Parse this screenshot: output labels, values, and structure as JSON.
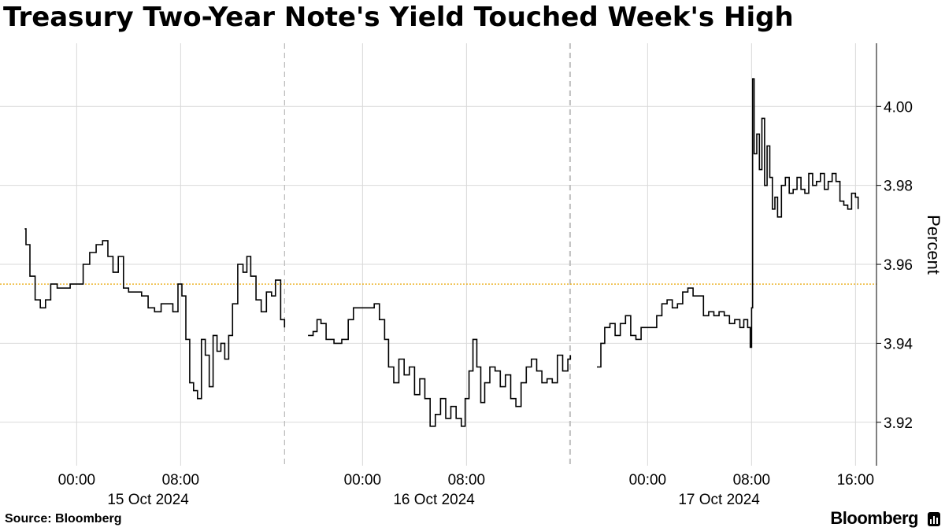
{
  "title": "Treasury Two-Year Note's Yield Touched Week's High",
  "source": "Source: Bloomberg",
  "brand": "Bloomberg",
  "colors": {
    "line": "#000000",
    "reference": "#e8a600",
    "grid": "#d9d9d9"
  },
  "chart_data": {
    "type": "line",
    "title": "Treasury Two-Year Note's Yield Touched Week's High",
    "xlabel": "",
    "ylabel": "Percent",
    "ylim": [
      3.909,
      4.016
    ],
    "xlim": [
      -5.9,
      16.4
    ],
    "y_ticks": [
      3.92,
      3.94,
      3.96,
      3.98,
      4.0
    ],
    "y_tick_labels": [
      "3.92",
      "3.94",
      "3.96",
      "3.98",
      "4.00"
    ],
    "x_ticks": [
      {
        "day": 0,
        "hour": 0,
        "label": "00:00"
      },
      {
        "day": 0,
        "hour": 8,
        "label": "08:00"
      },
      {
        "day": 1,
        "hour": 0,
        "label": "00:00"
      },
      {
        "day": 1,
        "hour": 8,
        "label": "08:00"
      },
      {
        "day": 2,
        "hour": 0,
        "label": "00:00"
      },
      {
        "day": 2,
        "hour": 8,
        "label": "08:00"
      },
      {
        "day": 2,
        "hour": 16,
        "label": "16:00"
      }
    ],
    "days": [
      {
        "label": "15 Oct 2024",
        "center_hour": 5.5
      },
      {
        "label": "16 Oct 2024",
        "center_hour": 5.5
      },
      {
        "label": "17 Oct 2024",
        "center_hour": 5.5
      }
    ],
    "day_boundaries": [
      {
        "day": 0,
        "hour": -6
      },
      {
        "day": 0,
        "hour": 16
      },
      {
        "day": 1,
        "hour": -6
      },
      {
        "day": 1,
        "hour": 16
      },
      {
        "day": 2,
        "hour": -6
      }
    ],
    "reference_line": 3.955,
    "grid": true,
    "series": [
      {
        "day": 0,
        "points": [
          [
            -4.0,
            3.969
          ],
          [
            -3.9,
            3.965
          ],
          [
            -3.6,
            3.957
          ],
          [
            -3.2,
            3.951
          ],
          [
            -2.8,
            3.949
          ],
          [
            -2.4,
            3.951
          ],
          [
            -2.0,
            3.955
          ],
          [
            -1.5,
            3.954
          ],
          [
            -1.0,
            3.954
          ],
          [
            -0.5,
            3.955
          ],
          [
            0.0,
            3.955
          ],
          [
            0.5,
            3.96
          ],
          [
            1.0,
            3.963
          ],
          [
            1.5,
            3.965
          ],
          [
            2.0,
            3.966
          ],
          [
            2.4,
            3.962
          ],
          [
            2.8,
            3.958
          ],
          [
            3.2,
            3.962
          ],
          [
            3.6,
            3.954
          ],
          [
            4.0,
            3.953
          ],
          [
            4.5,
            3.953
          ],
          [
            5.0,
            3.952
          ],
          [
            5.5,
            3.949
          ],
          [
            6.0,
            3.948
          ],
          [
            6.5,
            3.95
          ],
          [
            7.0,
            3.95
          ],
          [
            7.4,
            3.948
          ],
          [
            7.8,
            3.955
          ],
          [
            8.1,
            3.952
          ],
          [
            8.4,
            3.941
          ],
          [
            8.7,
            3.93
          ],
          [
            9.0,
            3.928
          ],
          [
            9.3,
            3.926
          ],
          [
            9.6,
            3.941
          ],
          [
            9.9,
            3.937
          ],
          [
            10.2,
            3.929
          ],
          [
            10.5,
            3.942
          ],
          [
            10.8,
            3.938
          ],
          [
            11.1,
            3.94
          ],
          [
            11.4,
            3.936
          ],
          [
            11.7,
            3.942
          ],
          [
            12.0,
            3.95
          ],
          [
            12.4,
            3.96
          ],
          [
            12.8,
            3.958
          ],
          [
            13.1,
            3.962
          ],
          [
            13.4,
            3.957
          ],
          [
            13.8,
            3.951
          ],
          [
            14.2,
            3.948
          ],
          [
            14.6,
            3.953
          ],
          [
            15.0,
            3.952
          ],
          [
            15.3,
            3.956
          ],
          [
            15.7,
            3.946
          ],
          [
            16.0,
            3.944
          ]
        ]
      },
      {
        "day": 1,
        "points": [
          [
            -4.2,
            3.942
          ],
          [
            -3.8,
            3.943
          ],
          [
            -3.5,
            3.946
          ],
          [
            -3.2,
            3.945
          ],
          [
            -2.8,
            3.941
          ],
          [
            -2.2,
            3.94
          ],
          [
            -1.6,
            3.941
          ],
          [
            -1.1,
            3.946
          ],
          [
            -0.7,
            3.949
          ],
          [
            -0.2,
            3.949
          ],
          [
            0.3,
            3.949
          ],
          [
            0.9,
            3.95
          ],
          [
            1.3,
            3.946
          ],
          [
            1.7,
            3.941
          ],
          [
            2.0,
            3.934
          ],
          [
            2.4,
            3.93
          ],
          [
            2.8,
            3.936
          ],
          [
            3.2,
            3.932
          ],
          [
            3.6,
            3.934
          ],
          [
            4.0,
            3.927
          ],
          [
            4.4,
            3.931
          ],
          [
            4.8,
            3.926
          ],
          [
            5.2,
            3.919
          ],
          [
            5.6,
            3.922
          ],
          [
            6.0,
            3.926
          ],
          [
            6.4,
            3.921
          ],
          [
            6.8,
            3.924
          ],
          [
            7.2,
            3.921
          ],
          [
            7.6,
            3.919
          ],
          [
            7.9,
            3.926
          ],
          [
            8.2,
            3.933
          ],
          [
            8.5,
            3.941
          ],
          [
            8.8,
            3.934
          ],
          [
            9.1,
            3.925
          ],
          [
            9.4,
            3.93
          ],
          [
            9.8,
            3.934
          ],
          [
            10.2,
            3.933
          ],
          [
            10.6,
            3.929
          ],
          [
            11.0,
            3.932
          ],
          [
            11.4,
            3.926
          ],
          [
            11.8,
            3.924
          ],
          [
            12.2,
            3.93
          ],
          [
            12.6,
            3.934
          ],
          [
            13.0,
            3.936
          ],
          [
            13.4,
            3.933
          ],
          [
            13.8,
            3.93
          ],
          [
            14.2,
            3.931
          ],
          [
            14.6,
            3.93
          ],
          [
            15.0,
            3.937
          ],
          [
            15.4,
            3.933
          ],
          [
            15.8,
            3.936
          ],
          [
            16.0,
            3.937
          ]
        ]
      },
      {
        "day": 2,
        "points": [
          [
            -3.9,
            3.934
          ],
          [
            -3.6,
            3.94
          ],
          [
            -3.3,
            3.944
          ],
          [
            -2.9,
            3.945
          ],
          [
            -2.5,
            3.942
          ],
          [
            -2.1,
            3.945
          ],
          [
            -1.7,
            3.947
          ],
          [
            -1.3,
            3.942
          ],
          [
            -0.9,
            3.941
          ],
          [
            -0.5,
            3.944
          ],
          [
            -0.1,
            3.944
          ],
          [
            0.3,
            3.944
          ],
          [
            0.7,
            3.947
          ],
          [
            1.1,
            3.95
          ],
          [
            1.5,
            3.951
          ],
          [
            1.9,
            3.949
          ],
          [
            2.3,
            3.95
          ],
          [
            2.7,
            3.953
          ],
          [
            3.1,
            3.954
          ],
          [
            3.5,
            3.952
          ],
          [
            3.9,
            3.952
          ],
          [
            4.3,
            3.947
          ],
          [
            4.7,
            3.948
          ],
          [
            5.1,
            3.947
          ],
          [
            5.5,
            3.948
          ],
          [
            5.9,
            3.947
          ],
          [
            6.3,
            3.945
          ],
          [
            6.7,
            3.946
          ],
          [
            7.1,
            3.944
          ],
          [
            7.4,
            3.946
          ],
          [
            7.7,
            3.944
          ],
          [
            7.9,
            3.939
          ],
          [
            8.0,
            3.949
          ],
          [
            8.08,
            4.007
          ],
          [
            8.2,
            3.988
          ],
          [
            8.4,
            3.993
          ],
          [
            8.6,
            3.984
          ],
          [
            8.8,
            3.997
          ],
          [
            9.0,
            3.98
          ],
          [
            9.2,
            3.99
          ],
          [
            9.4,
            3.982
          ],
          [
            9.6,
            3.974
          ],
          [
            9.8,
            3.977
          ],
          [
            10.0,
            3.972
          ],
          [
            10.3,
            3.98
          ],
          [
            10.6,
            3.982
          ],
          [
            10.9,
            3.978
          ],
          [
            11.2,
            3.979
          ],
          [
            11.5,
            3.982
          ],
          [
            11.8,
            3.979
          ],
          [
            12.1,
            3.978
          ],
          [
            12.4,
            3.983
          ],
          [
            12.7,
            3.98
          ],
          [
            13.0,
            3.981
          ],
          [
            13.3,
            3.983
          ],
          [
            13.6,
            3.979
          ],
          [
            13.9,
            3.981
          ],
          [
            14.2,
            3.983
          ],
          [
            14.5,
            3.981
          ],
          [
            14.8,
            3.976
          ],
          [
            15.1,
            3.975
          ],
          [
            15.4,
            3.974
          ],
          [
            15.7,
            3.978
          ],
          [
            16.0,
            3.977
          ],
          [
            16.2,
            3.974
          ]
        ]
      }
    ]
  }
}
